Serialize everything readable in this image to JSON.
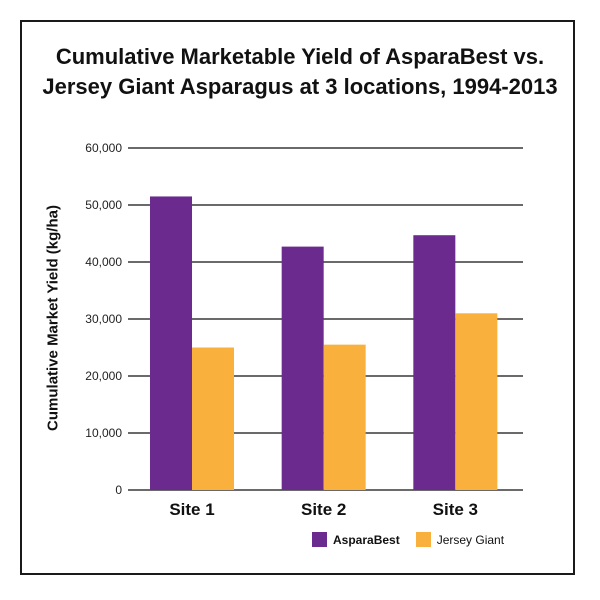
{
  "chart_data": {
    "type": "bar",
    "title": "Cumulative Marketable Yield of AsparaBest vs.\nJersey Giant Asparagus at 3 locations, 1994-2013",
    "xlabel": "",
    "ylabel": "Cumulative Market Yield (kg/ha)",
    "categories": [
      "Site 1",
      "Site 2",
      "Site 3"
    ],
    "series": [
      {
        "name": "AsparaBest",
        "values": [
          51500,
          42700,
          44700
        ],
        "color": "#6b2a8e"
      },
      {
        "name": "Jersey Giant",
        "values": [
          25000,
          25500,
          31000
        ],
        "color": "#f9b03c"
      }
    ],
    "ylim": [
      0,
      60000
    ],
    "yticks": [
      0,
      10000,
      20000,
      30000,
      40000,
      50000,
      60000
    ],
    "ytick_labels": [
      "0",
      "10,000",
      "20,000",
      "30,000",
      "40,000",
      "50,000",
      "60,000"
    ],
    "grid": true,
    "legend_position": "bottom-right"
  }
}
